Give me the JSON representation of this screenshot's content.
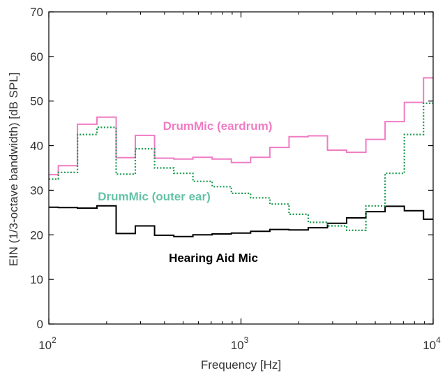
{
  "chart_data": {
    "type": "line",
    "title": "",
    "xlabel": "Frequency [Hz]",
    "ylabel": "EIN (1/3-octave bandwidth) [dB SPL]",
    "xscale": "log",
    "xlim": [
      100,
      10000
    ],
    "ylim": [
      0,
      70
    ],
    "grid": false,
    "legend": "none",
    "x_ticks": [
      {
        "value": 100,
        "base": "10",
        "exp": "2"
      },
      {
        "value": 1000,
        "base": "10",
        "exp": "3"
      },
      {
        "value": 10000,
        "base": "10",
        "exp": "4"
      }
    ],
    "y_ticks": [
      {
        "value": 0,
        "label": "0"
      },
      {
        "value": 10,
        "label": "10"
      },
      {
        "value": 20,
        "label": "20"
      },
      {
        "value": 30,
        "label": "30"
      },
      {
        "value": 40,
        "label": "40"
      },
      {
        "value": 50,
        "label": "50"
      },
      {
        "value": 60,
        "label": "60"
      },
      {
        "value": 70,
        "label": "70"
      }
    ],
    "band_edges": [
      100,
      112,
      141,
      178,
      224,
      282,
      355,
      447,
      562,
      708,
      891,
      1122,
      1413,
      1778,
      2239,
      2818,
      3548,
      4467,
      5623,
      7079,
      8913,
      10000
    ],
    "series": [
      {
        "label": "DrumMic (eardrum)",
        "style": "solid",
        "color": "#f07cc3",
        "values": [
          33.5,
          35.5,
          44.8,
          46.4,
          37.3,
          42.3,
          37.2,
          37.0,
          37.4,
          37.0,
          36.2,
          37.4,
          39.6,
          42.0,
          42.2,
          39.0,
          38.5,
          41.4,
          45.4,
          49.7,
          55.2
        ]
      },
      {
        "label": "DrumMic (outer ear)",
        "style": "dotted",
        "color": "#1a9a4e",
        "label_color": "#66c2a5",
        "values": [
          32.5,
          34.0,
          42.5,
          44.1,
          33.6,
          39.3,
          35.0,
          33.8,
          32.0,
          30.8,
          29.3,
          28.3,
          26.9,
          24.6,
          22.8,
          22.0,
          21.0,
          26.5,
          33.8,
          42.5,
          49.5
        ]
      },
      {
        "label": "Hearing Aid Mic",
        "style": "solid",
        "color": "#000000",
        "values": [
          26.2,
          26.1,
          26.0,
          26.5,
          20.3,
          22.0,
          19.9,
          19.6,
          20.0,
          20.2,
          20.4,
          20.8,
          21.2,
          21.1,
          21.6,
          22.6,
          23.8,
          25.2,
          26.4,
          25.4,
          23.5
        ]
      }
    ]
  }
}
